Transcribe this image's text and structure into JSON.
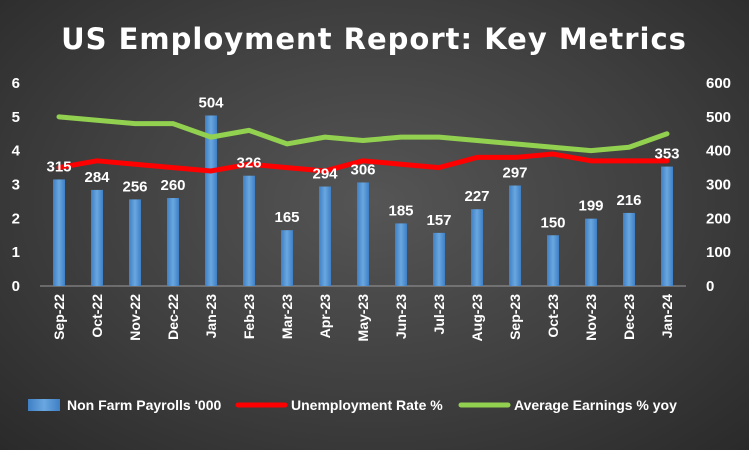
{
  "chart_data": {
    "type": "bar",
    "title": "US Employment Report: Key Metrics",
    "categories": [
      "Sep-22",
      "Oct-22",
      "Nov-22",
      "Dec-22",
      "Jan-23",
      "Feb-23",
      "Mar-23",
      "Apr-23",
      "May-23",
      "Jun-23",
      "Jul-23",
      "Aug-23",
      "Sep-23",
      "Oct-23",
      "Nov-23",
      "Dec-23",
      "Jan-24"
    ],
    "series": [
      {
        "name": "Non Farm Payrolls '000",
        "type": "bar",
        "axis": "right",
        "color": "#5b9bd5",
        "values": [
          315,
          284,
          256,
          260,
          504,
          326,
          165,
          294,
          306,
          185,
          157,
          227,
          297,
          150,
          199,
          216,
          353
        ]
      },
      {
        "name": "Unemployment Rate %",
        "type": "line",
        "axis": "left",
        "color": "#ff0000",
        "values": [
          3.5,
          3.7,
          3.6,
          3.5,
          3.4,
          3.6,
          3.5,
          3.4,
          3.7,
          3.6,
          3.5,
          3.8,
          3.8,
          3.9,
          3.7,
          3.7,
          3.7
        ]
      },
      {
        "name": "Average Earnings % yoy",
        "type": "line",
        "axis": "left",
        "color": "#92d050",
        "values": [
          5.0,
          4.9,
          4.8,
          4.8,
          4.4,
          4.6,
          4.2,
          4.4,
          4.3,
          4.4,
          4.4,
          4.3,
          4.2,
          4.1,
          4.0,
          4.1,
          4.5
        ]
      }
    ],
    "y_left": {
      "ylim": [
        0,
        6
      ],
      "ticks": [
        "0",
        "1",
        "2",
        "3",
        "4",
        "5",
        "6"
      ]
    },
    "y_right": {
      "ylim": [
        0,
        600
      ],
      "ticks": [
        "0",
        "100",
        "200",
        "300",
        "400",
        "500",
        "600"
      ]
    },
    "grid": false,
    "legend_position": "bottom"
  }
}
